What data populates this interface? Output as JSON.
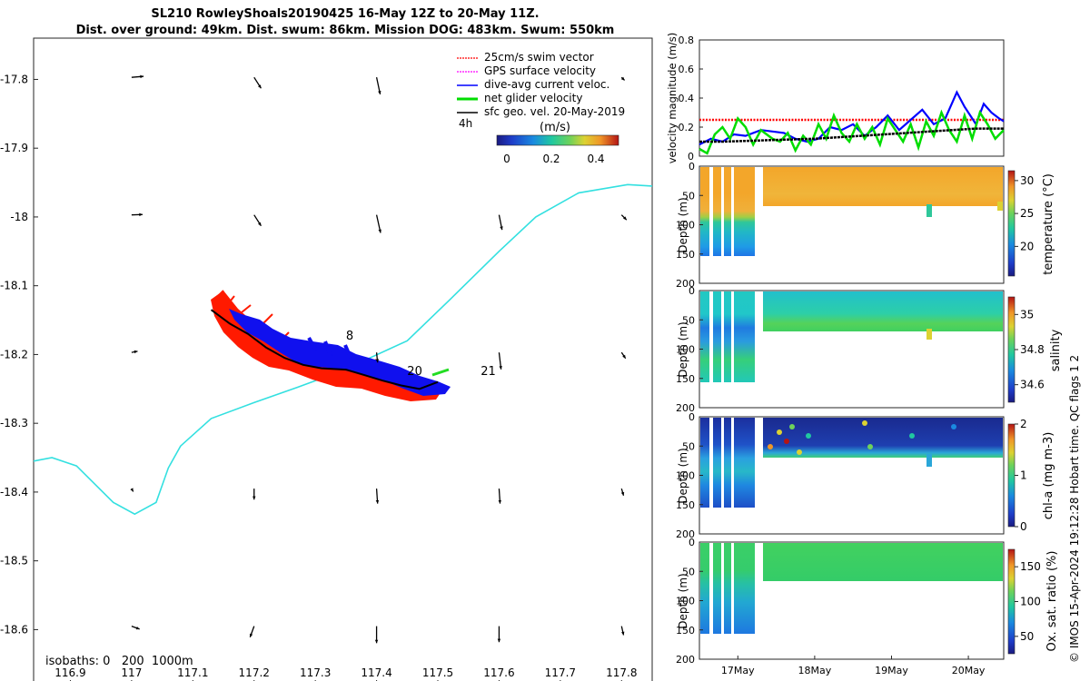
{
  "title": {
    "line1": "SL210 RowleyShoals20190425 16-May 12Z to 20-May 11Z.",
    "line2": "Dist. over ground: 49km. Dist. swum: 86km. Mission DOG: 483km. Swum: 550km"
  },
  "credit": "© IMOS 15-Apr-2024 19:12:28 Hobart time. QC flags 1  2",
  "chart_data": [
    {
      "type": "scatter",
      "name": "map",
      "x_ticks": [
        116.9,
        117,
        117.1,
        117.2,
        117.3,
        117.4,
        117.5,
        117.6,
        117.7,
        117.8
      ],
      "y_ticks": [
        -17.8,
        -17.9,
        -18,
        -18.1,
        -18.2,
        -18.3,
        -18.4,
        -18.5,
        -18.6
      ],
      "xlim": [
        116.84,
        117.85
      ],
      "ylim": [
        -18.68,
        -17.74
      ],
      "legend": [
        {
          "label": "25cm/s swim vector",
          "color": "#ff0000"
        },
        {
          "label": "GPS surface velocity",
          "color": "#ff00ff"
        },
        {
          "label": "dive-avg current veloc.",
          "color": "#0000ff"
        },
        {
          "label": "net glider velocity",
          "color": "#00dd00"
        },
        {
          "label": "sfc geo. vel. 20-May-2019",
          "color": "#000000"
        }
      ],
      "legend_extra": "4h",
      "colorbar": {
        "label": "(m/s)",
        "ticks": [
          "0",
          "0.2",
          "0.4"
        ]
      },
      "isobaths_label": "isobaths: 0   200  1000m",
      "track_labels": [
        {
          "text": "8",
          "lon": 117.35,
          "lat": -18.178
        },
        {
          "text": "20",
          "lon": 117.45,
          "lat": -18.23
        },
        {
          "text": "21",
          "lon": 117.57,
          "lat": -18.23
        }
      ],
      "isobath_line": [
        [
          116.84,
          -18.355
        ],
        [
          116.87,
          -18.35
        ],
        [
          116.91,
          -18.362
        ],
        [
          116.97,
          -18.415
        ],
        [
          117.005,
          -18.432
        ],
        [
          117.04,
          -18.415
        ],
        [
          117.06,
          -18.365
        ],
        [
          117.08,
          -18.333
        ],
        [
          117.13,
          -18.293
        ],
        [
          117.2,
          -18.27
        ],
        [
          117.27,
          -18.248
        ],
        [
          117.34,
          -18.225
        ],
        [
          117.45,
          -18.18
        ],
        [
          117.52,
          -18.12
        ],
        [
          117.6,
          -18.05
        ],
        [
          117.66,
          -18.0
        ],
        [
          117.73,
          -17.965
        ],
        [
          117.81,
          -17.953
        ],
        [
          117.85,
          -17.955
        ]
      ],
      "glider_track": [
        [
          117.13,
          -18.135
        ],
        [
          117.16,
          -18.155
        ],
        [
          117.19,
          -18.17
        ],
        [
          117.22,
          -18.19
        ],
        [
          117.25,
          -18.205
        ],
        [
          117.28,
          -18.215
        ],
        [
          117.31,
          -18.22
        ],
        [
          117.35,
          -18.222
        ],
        [
          117.38,
          -18.23
        ],
        [
          117.41,
          -18.238
        ],
        [
          117.44,
          -18.245
        ],
        [
          117.47,
          -18.25
        ],
        [
          117.5,
          -18.24
        ]
      ],
      "sfc_vectors": [
        {
          "lon": 117.0,
          "lat": -17.797,
          "u": 0.6,
          "v": 0.05
        },
        {
          "lon": 117.2,
          "lat": -17.797,
          "u": 0.35,
          "v": -0.55
        },
        {
          "lon": 117.4,
          "lat": -17.797,
          "u": 0.18,
          "v": -0.85
        },
        {
          "lon": 117.8,
          "lat": -17.797,
          "u": 0.15,
          "v": -0.15
        },
        {
          "lon": 117.0,
          "lat": -17.997,
          "u": 0.55,
          "v": 0.02
        },
        {
          "lon": 117.2,
          "lat": -17.997,
          "u": 0.35,
          "v": -0.55
        },
        {
          "lon": 117.4,
          "lat": -17.997,
          "u": 0.2,
          "v": -0.9
        },
        {
          "lon": 117.6,
          "lat": -17.997,
          "u": 0.15,
          "v": -0.75
        },
        {
          "lon": 117.8,
          "lat": -17.997,
          "u": 0.25,
          "v": -0.25
        },
        {
          "lon": 117.0,
          "lat": -18.197,
          "u": 0.3,
          "v": 0.06
        },
        {
          "lon": 117.4,
          "lat": -18.197,
          "u": 0.05,
          "v": -0.5
        },
        {
          "lon": 117.6,
          "lat": -18.197,
          "u": 0.1,
          "v": -0.85
        },
        {
          "lon": 117.8,
          "lat": -18.197,
          "u": 0.2,
          "v": -0.3
        },
        {
          "lon": 117.0,
          "lat": -18.395,
          "u": 0.08,
          "v": -0.15
        },
        {
          "lon": 117.2,
          "lat": -18.395,
          "u": 0.0,
          "v": -0.55
        },
        {
          "lon": 117.4,
          "lat": -18.395,
          "u": 0.05,
          "v": -0.75
        },
        {
          "lon": 117.6,
          "lat": -18.395,
          "u": 0.05,
          "v": -0.75
        },
        {
          "lon": 117.8,
          "lat": -18.395,
          "u": 0.1,
          "v": -0.35
        },
        {
          "lon": 117.0,
          "lat": -18.595,
          "u": 0.4,
          "v": -0.15
        },
        {
          "lon": 117.2,
          "lat": -18.595,
          "u": -0.2,
          "v": -0.55
        },
        {
          "lon": 117.4,
          "lat": -18.595,
          "u": 0.0,
          "v": -0.85
        },
        {
          "lon": 117.6,
          "lat": -18.595,
          "u": 0.0,
          "v": -0.8
        },
        {
          "lon": 117.8,
          "lat": -18.595,
          "u": 0.1,
          "v": -0.45
        }
      ]
    },
    {
      "type": "line",
      "name": "velocity",
      "ylabel": "velocity magnitude (m/s)",
      "y_ticks": [
        0,
        0.2,
        0.4,
        0.6,
        0.8
      ],
      "ylim": [
        0,
        0.8
      ],
      "x_ticks": [
        "17May",
        "18May",
        "19May",
        "20May"
      ],
      "xlim_days": [
        16.5,
        20.46
      ],
      "series": [
        {
          "name": "swim speed",
          "color": "#ff0000",
          "x": [
            16.5,
            16.7,
            16.9,
            17.1,
            17.3,
            17.45,
            17.7,
            17.9,
            18.1,
            18.3,
            18.5,
            18.7,
            18.9,
            19.1,
            19.3,
            19.5,
            19.7,
            19.9,
            20.1,
            20.3,
            20.46
          ],
          "y": [
            0.25,
            0.25,
            0.25,
            0.25,
            0.25,
            0.25,
            0.25,
            0.25,
            0.25,
            0.25,
            0.25,
            0.25,
            0.25,
            0.25,
            0.25,
            0.25,
            0.25,
            0.25,
            0.25,
            0.25,
            0.25
          ]
        },
        {
          "name": "dive-avg current",
          "color": "#0000ff",
          "x": [
            16.5,
            16.65,
            16.8,
            16.95,
            17.1,
            17.3,
            17.45,
            17.6,
            17.75,
            17.9,
            18.05,
            18.2,
            18.35,
            18.5,
            18.65,
            18.8,
            18.95,
            19.1,
            19.25,
            19.4,
            19.55,
            19.7,
            19.85,
            19.95,
            20.1,
            20.2,
            20.3,
            20.4,
            20.46
          ],
          "y": [
            0.08,
            0.12,
            0.1,
            0.15,
            0.14,
            0.18,
            0.17,
            0.16,
            0.12,
            0.1,
            0.12,
            0.2,
            0.18,
            0.22,
            0.14,
            0.2,
            0.28,
            0.18,
            0.25,
            0.32,
            0.22,
            0.26,
            0.44,
            0.34,
            0.22,
            0.36,
            0.3,
            0.26,
            0.24
          ]
        },
        {
          "name": "net glider velocity",
          "color": "#00dd00",
          "x": [
            16.5,
            16.6,
            16.7,
            16.8,
            16.9,
            17.0,
            17.1,
            17.2,
            17.3,
            17.45,
            17.55,
            17.65,
            17.75,
            17.85,
            17.95,
            18.05,
            18.15,
            18.25,
            18.35,
            18.45,
            18.55,
            18.65,
            18.75,
            18.85,
            18.95,
            19.05,
            19.15,
            19.25,
            19.35,
            19.45,
            19.55,
            19.65,
            19.75,
            19.85,
            19.95,
            20.05,
            20.15,
            20.25,
            20.35,
            20.46
          ],
          "y": [
            0.05,
            0.02,
            0.15,
            0.2,
            0.12,
            0.26,
            0.2,
            0.08,
            0.18,
            0.12,
            0.1,
            0.16,
            0.04,
            0.14,
            0.08,
            0.22,
            0.12,
            0.28,
            0.16,
            0.1,
            0.22,
            0.12,
            0.2,
            0.08,
            0.26,
            0.18,
            0.1,
            0.22,
            0.06,
            0.24,
            0.14,
            0.3,
            0.18,
            0.1,
            0.28,
            0.12,
            0.3,
            0.22,
            0.12,
            0.18
          ]
        },
        {
          "name": "sfc geo. vel.",
          "color": "#000000",
          "x": [
            16.5,
            16.8,
            17.1,
            17.4,
            17.7,
            18.0,
            18.3,
            18.6,
            18.9,
            19.2,
            19.5,
            19.8,
            20.1,
            20.46
          ],
          "y": [
            0.1,
            0.1,
            0.105,
            0.11,
            0.115,
            0.12,
            0.13,
            0.14,
            0.15,
            0.16,
            0.17,
            0.18,
            0.19,
            0.19
          ]
        }
      ]
    },
    {
      "type": "heatmap",
      "name": "temperature",
      "ylabel": "Depth (m)",
      "y_ticks": [
        0,
        50,
        100,
        150,
        200
      ],
      "colorbar_label": "temperature (°C)",
      "colorbar_ticks": [
        20,
        25,
        30
      ],
      "clim": [
        15.5,
        31.5
      ]
    },
    {
      "type": "heatmap",
      "name": "salinity",
      "ylabel": "Depth (m)",
      "y_ticks": [
        0,
        50,
        100,
        150,
        200
      ],
      "colorbar_label": "salinity",
      "colorbar_ticks": [
        34.6,
        34.8,
        35
      ],
      "clim": [
        34.5,
        35.1
      ]
    },
    {
      "type": "heatmap",
      "name": "chl-a",
      "ylabel": "Depth (m)",
      "y_ticks": [
        0,
        50,
        100,
        150,
        200
      ],
      "colorbar_label": "chl-a (mg m-3)",
      "colorbar_ticks": [
        0,
        1,
        2
      ],
      "clim": [
        0,
        2
      ]
    },
    {
      "type": "heatmap",
      "name": "oxygen",
      "ylabel": "Depth (m)",
      "y_ticks": [
        0,
        50,
        100,
        150,
        200
      ],
      "colorbar_label": "Ox. sat. ratio (%)",
      "colorbar_ticks": [
        50,
        100,
        150
      ],
      "clim": [
        25,
        175
      ],
      "x_ticks": [
        "17May",
        "18May",
        "19May",
        "20May"
      ]
    }
  ]
}
